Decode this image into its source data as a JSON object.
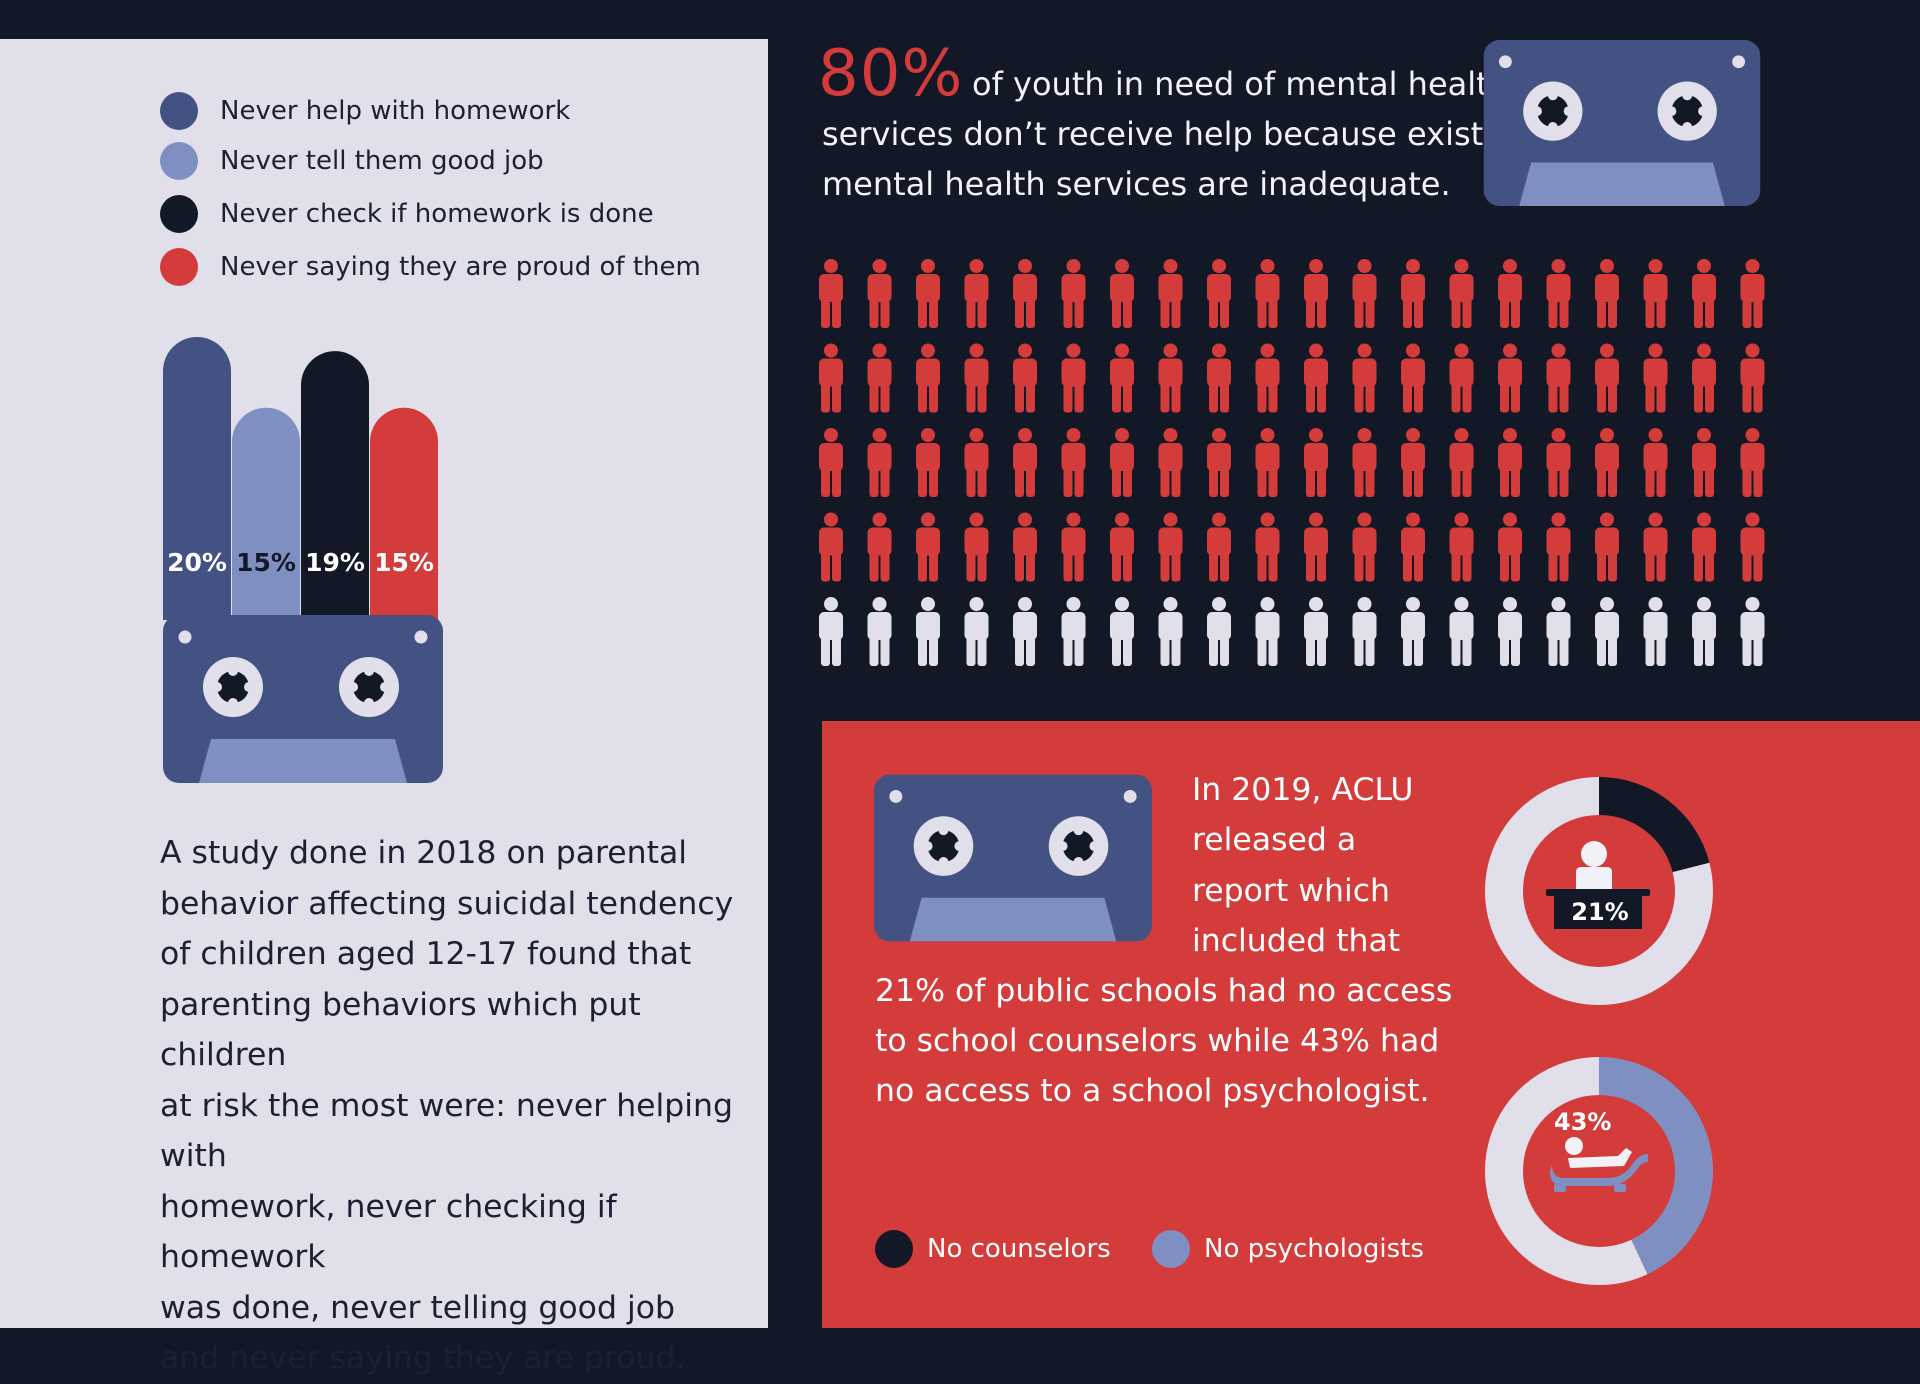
{
  "colors": {
    "navy": "#131827",
    "slate_blue": "#435282",
    "periwinkle": "#7f8fc2",
    "red": "#d43b3b",
    "light": "#e0dfea",
    "white": "#f1f1f7"
  },
  "icons": [
    "cassette-icon",
    "person-icon",
    "counselor-desk-icon",
    "psychologist-couch-icon"
  ],
  "legend": [
    {
      "label": "Never help with homework",
      "color": "#435282"
    },
    {
      "label": "Never tell them good job",
      "color": "#7f8fc2"
    },
    {
      "label": "Never check if homework is done",
      "color": "#131827"
    },
    {
      "label": "Never saying they are proud of them",
      "color": "#d43b3b"
    }
  ],
  "study_text": [
    "A study done in 2018 on parental",
    "behavior affecting suicidal tendency",
    "of children aged 12-17 found that",
    "parenting behaviors which put children",
    "at risk the most were: never helping with",
    "homework, never checking if homework",
    "was done, never telling good job",
    "and never saying they are proud."
  ],
  "headline": {
    "percent": "80%",
    "line1": "of youth in need of mental health",
    "line2": "services don’t receive help because existing",
    "line3": "mental health services are inadequate."
  },
  "aclu": {
    "lines": [
      "In 2019, ACLU",
      "released a",
      "report which",
      "included that",
      "21% of public schools had no access",
      "to school counselors while 43% had",
      "no access to a school psychologist."
    ],
    "legend": [
      {
        "label": "No counselors",
        "color": "#131827"
      },
      {
        "label": "No psychologists",
        "color": "#7f8fc2"
      }
    ]
  },
  "chart_data": [
    {
      "type": "bar",
      "categories": [
        "Never help with homework",
        "Never tell them good job",
        "Never check if homework is done",
        "Never saying they are proud of them"
      ],
      "values": [
        20,
        15,
        19,
        15
      ],
      "value_labels": [
        "20%",
        "15%",
        "19%",
        "15%"
      ],
      "colors": [
        "#435282",
        "#7f8fc2",
        "#131827",
        "#d43b3b"
      ],
      "label_colors": [
        "#ffffff",
        "#131827",
        "#ffffff",
        "#ffffff"
      ],
      "ylim": [
        0,
        20
      ]
    },
    {
      "type": "pictogram",
      "total": 100,
      "highlighted": 80,
      "columns": 20,
      "rows": 5,
      "highlight_color": "#d43b3b",
      "base_color": "#e0dfea"
    },
    {
      "type": "pie",
      "variant": "donut",
      "label": "21%",
      "values": [
        21,
        79
      ],
      "colors": [
        "#131827",
        "#e0dfea"
      ]
    },
    {
      "type": "pie",
      "variant": "donut",
      "label": "43%",
      "values": [
        43,
        57
      ],
      "colors": [
        "#7f8fc2",
        "#e0dfea"
      ]
    }
  ]
}
